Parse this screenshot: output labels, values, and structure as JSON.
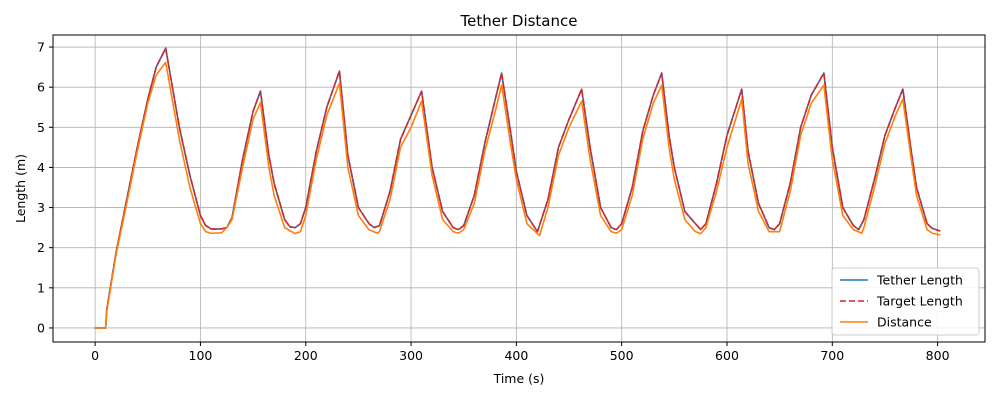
{
  "chart_data": {
    "type": "line",
    "title": "Tether Distance",
    "xlabel": "Time (s)",
    "ylabel": "Length (m)",
    "xlim": [
      -40,
      845
    ],
    "ylim": [
      -0.35,
      7.3
    ],
    "xticks": [
      0,
      100,
      200,
      300,
      400,
      500,
      600,
      700,
      800
    ],
    "yticks": [
      0,
      1,
      2,
      3,
      4,
      5,
      6,
      7
    ],
    "grid": true,
    "legend_position": "bottom-right",
    "series": [
      {
        "name": "Tether Length",
        "color": "#1f77b4",
        "dash": "solid",
        "x": [
          0,
          9,
          10,
          11,
          20,
          30,
          40,
          50,
          58,
          67,
          80,
          90,
          100,
          105,
          110,
          115,
          120,
          125,
          130,
          140,
          150,
          157,
          165,
          170,
          180,
          185,
          190,
          195,
          200,
          210,
          220,
          232,
          240,
          250,
          260,
          265,
          270,
          280,
          290,
          300,
          310,
          320,
          330,
          340,
          345,
          350,
          360,
          370,
          380,
          386,
          395,
          400,
          410,
          420,
          430,
          440,
          450,
          462,
          470,
          480,
          490,
          495,
          500,
          510,
          520,
          530,
          538,
          545,
          550,
          560,
          570,
          575,
          580,
          590,
          600,
          614,
          620,
          630,
          640,
          645,
          650,
          660,
          670,
          680,
          692,
          700,
          710,
          720,
          725,
          730,
          740,
          750,
          760,
          767,
          775,
          780,
          790,
          795,
          802
        ],
        "y": [
          0,
          0,
          0,
          0.45,
          1.9,
          3.2,
          4.5,
          5.7,
          6.5,
          6.97,
          5.0,
          3.8,
          2.8,
          2.55,
          2.47,
          2.46,
          2.47,
          2.5,
          2.75,
          4.2,
          5.4,
          5.9,
          4.3,
          3.6,
          2.7,
          2.52,
          2.5,
          2.6,
          3.0,
          4.4,
          5.5,
          6.4,
          4.3,
          3.0,
          2.6,
          2.5,
          2.55,
          3.4,
          4.7,
          5.3,
          5.9,
          4.0,
          2.9,
          2.5,
          2.45,
          2.55,
          3.3,
          4.6,
          5.7,
          6.35,
          4.8,
          3.9,
          2.8,
          2.4,
          3.2,
          4.5,
          5.2,
          5.95,
          4.5,
          3.0,
          2.5,
          2.45,
          2.6,
          3.5,
          4.9,
          5.8,
          6.35,
          4.8,
          4.0,
          2.9,
          2.6,
          2.45,
          2.6,
          3.6,
          4.8,
          5.95,
          4.4,
          3.1,
          2.5,
          2.45,
          2.6,
          3.6,
          5.0,
          5.8,
          6.35,
          4.5,
          3.0,
          2.55,
          2.45,
          2.7,
          3.7,
          4.8,
          5.5,
          5.95,
          4.4,
          3.5,
          2.6,
          2.48,
          2.42
        ]
      },
      {
        "name": "Target Length",
        "color": "#d62728",
        "dash": "dashed",
        "x": [
          0,
          9,
          10,
          11,
          20,
          30,
          40,
          50,
          58,
          67,
          80,
          90,
          100,
          105,
          110,
          115,
          120,
          125,
          130,
          140,
          150,
          157,
          165,
          170,
          180,
          185,
          190,
          195,
          200,
          210,
          220,
          232,
          240,
          250,
          260,
          265,
          270,
          280,
          290,
          300,
          310,
          320,
          330,
          340,
          345,
          350,
          360,
          370,
          380,
          386,
          395,
          400,
          410,
          420,
          430,
          440,
          450,
          462,
          470,
          480,
          490,
          495,
          500,
          510,
          520,
          530,
          538,
          545,
          550,
          560,
          570,
          575,
          580,
          590,
          600,
          614,
          620,
          630,
          640,
          645,
          650,
          660,
          670,
          680,
          692,
          700,
          710,
          720,
          725,
          730,
          740,
          750,
          760,
          767,
          775,
          780,
          790,
          795,
          802
        ],
        "y": [
          0,
          0,
          0,
          0.45,
          1.9,
          3.2,
          4.5,
          5.7,
          6.5,
          6.97,
          5.0,
          3.8,
          2.8,
          2.55,
          2.47,
          2.46,
          2.47,
          2.5,
          2.75,
          4.2,
          5.4,
          5.9,
          4.3,
          3.6,
          2.7,
          2.52,
          2.5,
          2.6,
          3.0,
          4.4,
          5.5,
          6.4,
          4.3,
          3.0,
          2.6,
          2.5,
          2.55,
          3.4,
          4.7,
          5.3,
          5.9,
          4.0,
          2.9,
          2.5,
          2.45,
          2.55,
          3.3,
          4.6,
          5.7,
          6.35,
          4.8,
          3.9,
          2.8,
          2.4,
          3.2,
          4.5,
          5.2,
          5.95,
          4.5,
          3.0,
          2.5,
          2.45,
          2.6,
          3.5,
          4.9,
          5.8,
          6.35,
          4.8,
          4.0,
          2.9,
          2.6,
          2.45,
          2.6,
          3.6,
          4.8,
          5.95,
          4.4,
          3.1,
          2.5,
          2.45,
          2.6,
          3.6,
          5.0,
          5.8,
          6.35,
          4.5,
          3.0,
          2.55,
          2.45,
          2.7,
          3.7,
          4.8,
          5.5,
          5.95,
          4.4,
          3.5,
          2.6,
          2.48,
          2.42
        ]
      },
      {
        "name": "Distance",
        "color": "#ff7f0e",
        "dash": "solid",
        "x": [
          0,
          10,
          11,
          20,
          30,
          40,
          50,
          58,
          67,
          80,
          90,
          100,
          105,
          110,
          120,
          125,
          130,
          140,
          150,
          157,
          165,
          170,
          180,
          190,
          195,
          200,
          210,
          220,
          232,
          240,
          250,
          260,
          268,
          270,
          280,
          290,
          300,
          310,
          320,
          330,
          340,
          345,
          350,
          360,
          370,
          380,
          386,
          395,
          400,
          410,
          422,
          430,
          440,
          450,
          462,
          470,
          480,
          490,
          495,
          500,
          510,
          520,
          530,
          538,
          545,
          550,
          560,
          570,
          575,
          580,
          590,
          600,
          614,
          620,
          630,
          640,
          650,
          660,
          670,
          680,
          692,
          700,
          710,
          720,
          728,
          730,
          740,
          750,
          760,
          767,
          775,
          780,
          790,
          795,
          802
        ],
        "y": [
          0,
          0,
          0.4,
          1.85,
          3.1,
          4.4,
          5.6,
          6.3,
          6.62,
          4.7,
          3.5,
          2.6,
          2.4,
          2.36,
          2.37,
          2.5,
          2.7,
          4.0,
          5.2,
          5.62,
          4.0,
          3.3,
          2.5,
          2.35,
          2.4,
          2.8,
          4.2,
          5.3,
          6.1,
          4.0,
          2.8,
          2.45,
          2.36,
          2.4,
          3.2,
          4.5,
          5.0,
          5.65,
          3.8,
          2.7,
          2.4,
          2.36,
          2.45,
          3.1,
          4.4,
          5.4,
          6.05,
          4.5,
          3.7,
          2.6,
          2.3,
          3.0,
          4.3,
          5.0,
          5.65,
          4.2,
          2.8,
          2.4,
          2.36,
          2.45,
          3.3,
          4.7,
          5.6,
          6.05,
          4.5,
          3.7,
          2.7,
          2.4,
          2.35,
          2.5,
          3.4,
          4.5,
          5.7,
          4.1,
          2.9,
          2.4,
          2.4,
          3.4,
          4.8,
          5.6,
          6.05,
          4.2,
          2.8,
          2.45,
          2.36,
          2.5,
          3.5,
          4.6,
          5.3,
          5.7,
          4.2,
          3.3,
          2.45,
          2.36,
          2.32
        ]
      }
    ]
  }
}
